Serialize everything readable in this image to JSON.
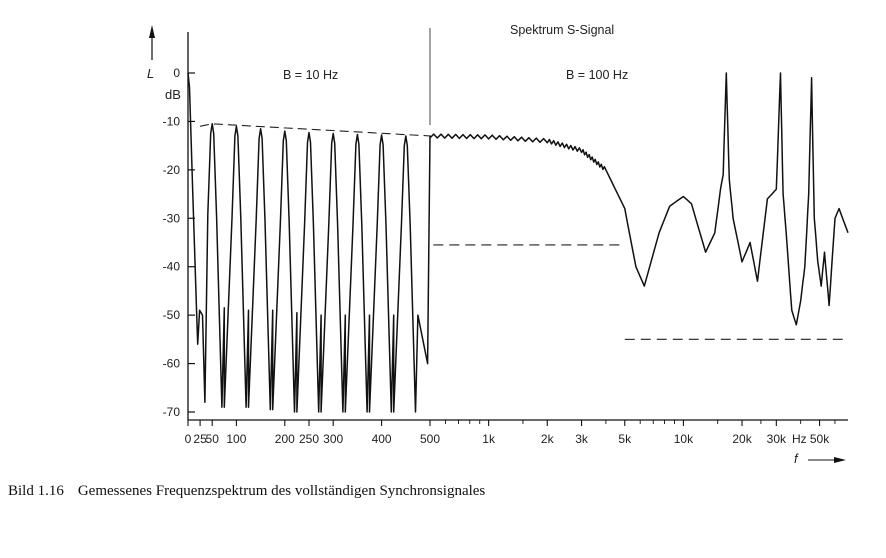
{
  "caption": {
    "number": "Bild 1.16",
    "text": "Gemessenes Frequenzspektrum des vollständigen Synchronsignales"
  },
  "chart_data": {
    "type": "line",
    "title": "Spektrum S-Signal",
    "ylabel": "L",
    "yunit": "dB",
    "xlabel": "f",
    "xunit": "Hz",
    "ylim": [
      -70,
      0
    ],
    "y_ticks": [
      0,
      -10,
      -20,
      -30,
      -40,
      -50,
      -60,
      -70
    ],
    "x_ticks_linear": [
      {
        "v": 0,
        "label": "0"
      },
      {
        "v": 25,
        "label": "25"
      },
      {
        "v": 50,
        "label": "50"
      },
      {
        "v": 100,
        "label": "100"
      },
      {
        "v": 200,
        "label": "200"
      },
      {
        "v": 250,
        "label": "250"
      },
      {
        "v": 300,
        "label": "300"
      },
      {
        "v": 400,
        "label": "400"
      },
      {
        "v": 500,
        "label": "500"
      }
    ],
    "x_ticks_log": [
      {
        "v": 1000,
        "label": "1k"
      },
      {
        "v": 2000,
        "label": "2k"
      },
      {
        "v": 3000,
        "label": "3k"
      },
      {
        "v": 5000,
        "label": "5k"
      },
      {
        "v": 10000,
        "label": "10k"
      },
      {
        "v": 20000,
        "label": "20k"
      },
      {
        "v": 30000,
        "label": "30k"
      },
      {
        "v": 50000,
        "label": "50k"
      }
    ],
    "x_unit_tick_label": "Hz",
    "annotations": [
      {
        "id": "bw1",
        "text": "B = 10 Hz"
      },
      {
        "id": "bw2",
        "text": "B = 100 Hz"
      }
    ],
    "segment_linear": {
      "f_range": [
        0,
        500
      ],
      "peaks": [
        {
          "f": 50,
          "db": -10.5
        },
        {
          "f": 100,
          "db": -11
        },
        {
          "f": 150,
          "db": -11.5
        },
        {
          "f": 200,
          "db": -12
        },
        {
          "f": 250,
          "db": -12.3
        },
        {
          "f": 300,
          "db": -12.5
        },
        {
          "f": 350,
          "db": -12.7
        },
        {
          "f": 400,
          "db": -12.8
        },
        {
          "f": 450,
          "db": -13
        }
      ],
      "nulls": [
        {
          "f": 35,
          "db": -68
        },
        {
          "f": 75,
          "db": -69
        },
        {
          "f": 125,
          "db": -69
        },
        {
          "f": 175,
          "db": -69.5
        },
        {
          "f": 225,
          "db": -70
        },
        {
          "f": 275,
          "db": -70
        },
        {
          "f": 325,
          "db": -70
        },
        {
          "f": 375,
          "db": -70
        },
        {
          "f": 425,
          "db": -70
        },
        {
          "f": 475,
          "db": -70
        }
      ],
      "side_lobes": [
        {
          "f": 25,
          "db": -49
        },
        {
          "f": 75,
          "db": -48.5
        },
        {
          "f": 125,
          "db": -49
        },
        {
          "f": 175,
          "db": -49
        },
        {
          "f": 225,
          "db": -49.5
        },
        {
          "f": 275,
          "db": -50
        },
        {
          "f": 325,
          "db": -50
        },
        {
          "f": 375,
          "db": -50
        },
        {
          "f": 425,
          "db": -50
        },
        {
          "f": 475,
          "db": -50
        }
      ],
      "dc_start_db": 0
    },
    "segment_log": {
      "points": [
        {
          "f": 500,
          "db": -13
        },
        {
          "f": 1000,
          "db": -13.2
        },
        {
          "f": 2000,
          "db": -14
        },
        {
          "f": 3000,
          "db": -16
        },
        {
          "f": 4000,
          "db": -20
        },
        {
          "f": 5000,
          "db": -28
        },
        {
          "f": 5700,
          "db": -40
        },
        {
          "f": 6300,
          "db": -44
        },
        {
          "f": 7500,
          "db": -33
        },
        {
          "f": 8500,
          "db": -27.5
        },
        {
          "f": 10000,
          "db": -25.5
        },
        {
          "f": 11000,
          "db": -27
        },
        {
          "f": 13000,
          "db": -37
        },
        {
          "f": 14500,
          "db": -33
        },
        {
          "f": 15500,
          "db": -24
        },
        {
          "f": 16000,
          "db": -21
        },
        {
          "f": 16600,
          "db": 0
        },
        {
          "f": 17200,
          "db": -22
        },
        {
          "f": 18000,
          "db": -30
        },
        {
          "f": 20000,
          "db": -39
        },
        {
          "f": 22000,
          "db": -35
        },
        {
          "f": 24000,
          "db": -43
        },
        {
          "f": 27000,
          "db": -26
        },
        {
          "f": 30000,
          "db": -24
        },
        {
          "f": 31500,
          "db": 0
        },
        {
          "f": 32500,
          "db": -25
        },
        {
          "f": 34000,
          "db": -35
        },
        {
          "f": 36000,
          "db": -49
        },
        {
          "f": 38000,
          "db": -52
        },
        {
          "f": 40000,
          "db": -47
        },
        {
          "f": 42000,
          "db": -40
        },
        {
          "f": 44000,
          "db": -25
        },
        {
          "f": 45500,
          "db": -1
        },
        {
          "f": 47000,
          "db": -30
        },
        {
          "f": 49000,
          "db": -39
        },
        {
          "f": 51000,
          "db": -44
        },
        {
          "f": 53000,
          "db": -37
        },
        {
          "f": 56000,
          "db": -48
        },
        {
          "f": 60000,
          "db": -30
        },
        {
          "f": 63000,
          "db": -28
        },
        {
          "f": 70000,
          "db": -33
        }
      ]
    },
    "envelope_dashed": {
      "f_range": [
        25,
        500
      ],
      "db_start": -11,
      "db_end": -13
    },
    "reference_lines_dashed": [
      {
        "f_range": [
          520,
          4800
        ],
        "db": -35.5
      },
      {
        "f_range": [
          5000,
          70000
        ],
        "db": -55
      }
    ],
    "divider_f": 500,
    "grid": false
  }
}
